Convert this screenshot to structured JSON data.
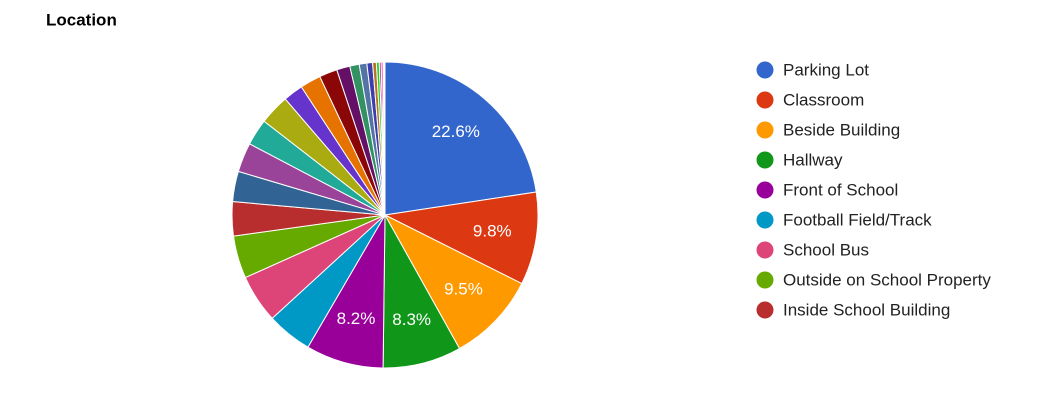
{
  "chart_data": {
    "type": "pie",
    "title": "Location",
    "categories": [
      "Parking Lot",
      "Classroom",
      "Beside Building",
      "Hallway",
      "Front of School",
      "Football Field/Track",
      "School Bus",
      "Outside on School Property",
      "Inside School Building",
      null,
      null,
      null,
      null,
      null,
      null,
      null,
      null,
      null,
      null,
      null,
      null,
      null,
      null,
      null,
      null,
      null
    ],
    "values": [
      22.6,
      9.8,
      9.5,
      8.3,
      8.2,
      4.8,
      5.1,
      4.5,
      3.6,
      3.2,
      3.1,
      2.8,
      3.2,
      2.1,
      2.2,
      1.9,
      1.4,
      1.0,
      0.8,
      0.6,
      0.4,
      0.3,
      0.2,
      0.2,
      0.1,
      0.1
    ],
    "value_labels": [
      "22.6%",
      "9.8%",
      "9.5%",
      "8.3%",
      "8.2%",
      null,
      null,
      null,
      null,
      null,
      null,
      null,
      null,
      null,
      null,
      null,
      null,
      null,
      null,
      null,
      null,
      null,
      null,
      null,
      null,
      null
    ],
    "colors": [
      "#3366cc",
      "#dc3912",
      "#ff9900",
      "#109618",
      "#990099",
      "#0099c6",
      "#dd4477",
      "#66aa00",
      "#b82e2e",
      "#316395",
      "#994499",
      "#22aa99",
      "#aaaa11",
      "#6633cc",
      "#e67300",
      "#8b0707",
      "#651067",
      "#329262",
      "#5574a6",
      "#3b3eac",
      "#b77322",
      "#16d620",
      "#b91383",
      "#f4359e",
      "#9c5935",
      "#a9c413"
    ]
  }
}
